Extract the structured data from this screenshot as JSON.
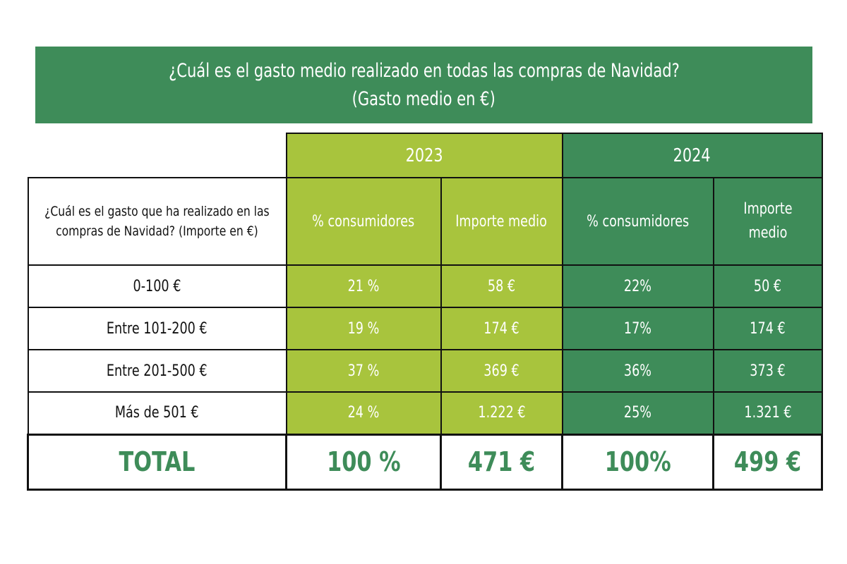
{
  "banner": {
    "title": "¿Cuál es el gasto medio realizado en todas las compras de Navidad?",
    "subtitle": "(Gasto medio en €)"
  },
  "colors": {
    "green_dark": "#3e8c59",
    "green_light": "#a8c43d"
  },
  "table": {
    "years": [
      "2023",
      "2024"
    ],
    "row_header": "¿Cuál es el gasto que ha realizado en las compras de Navidad? (Importe en €)",
    "columns": [
      "% consumidores",
      "Importe medio",
      "% consumidores",
      "Importe medio"
    ],
    "rows": [
      {
        "label": "0-100 €",
        "pct_2023": "21 %",
        "amt_2023": "58 €",
        "pct_2024": "22%",
        "amt_2024": "50 €"
      },
      {
        "label": "Entre 101-200 €",
        "pct_2023": "19 %",
        "amt_2023": "174 €",
        "pct_2024": "17%",
        "amt_2024": "174 €"
      },
      {
        "label": "Entre 201-500 €",
        "pct_2023": "37 %",
        "amt_2023": "369 €",
        "pct_2024": "36%",
        "amt_2024": "373 €"
      },
      {
        "label": "Más de 501 €",
        "pct_2023": "24 %",
        "amt_2023": "1.222 €",
        "pct_2024": "25%",
        "amt_2024": "1.321 €"
      }
    ],
    "total": {
      "label": "TOTAL",
      "pct_2023": "100 %",
      "amt_2023": "471 €",
      "pct_2024": "100%",
      "amt_2024": "499 €"
    }
  }
}
